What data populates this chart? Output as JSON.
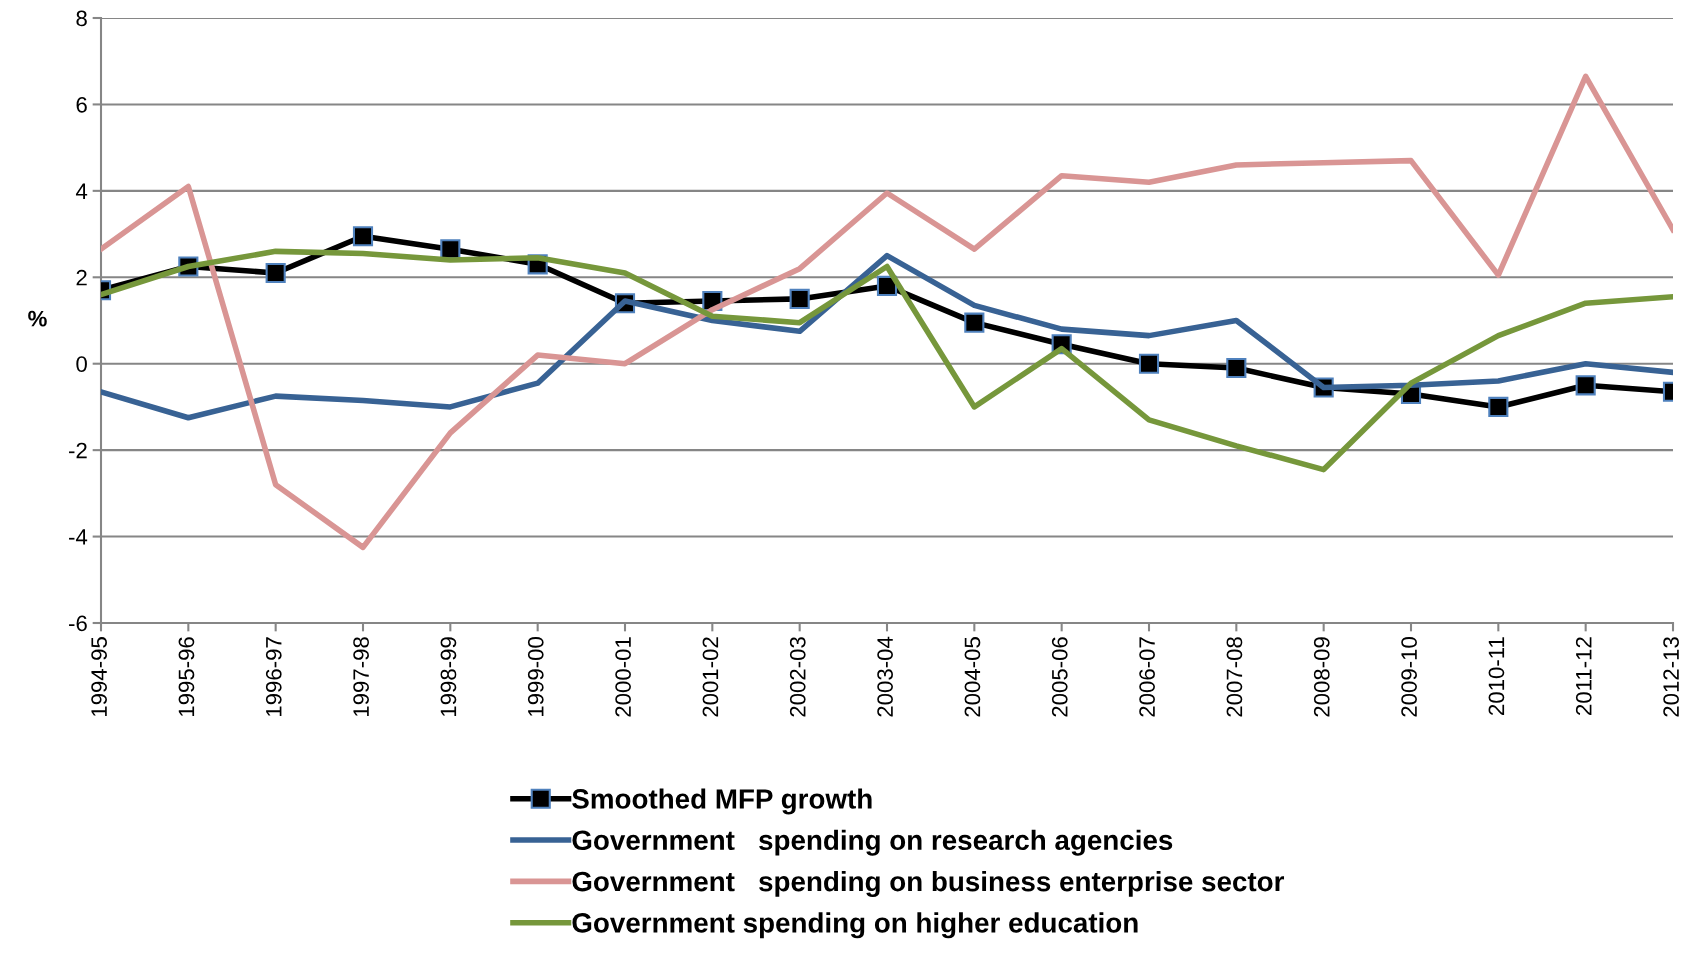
{
  "chart_data": {
    "type": "line",
    "ylabel": "%",
    "categories": [
      "1994-95",
      "1995-96",
      "1996-97",
      "1997-98",
      "1998-99",
      "1999-00",
      "2000-01",
      "2001-02",
      "2002-03",
      "2003-04",
      "2004-05",
      "2005-06",
      "2006-07",
      "2007-08",
      "2008-09",
      "2009-10",
      "2010-11",
      "2011-12",
      "2012-13"
    ],
    "series": [
      {
        "name": "Smoothed MFP growth",
        "color": "#000000",
        "marker": "square",
        "values": [
          1.7,
          2.25,
          2.1,
          2.95,
          2.65,
          2.3,
          1.4,
          1.45,
          1.5,
          1.8,
          0.95,
          0.45,
          0.0,
          -0.1,
          -0.55,
          -0.7,
          -1.0,
          -0.5,
          -0.65
        ]
      },
      {
        "name": "Government   spending on research agencies",
        "color": "#386294",
        "values": [
          -0.65,
          -1.25,
          -0.75,
          -0.85,
          -1.0,
          -0.45,
          1.45,
          1.0,
          0.75,
          2.5,
          1.35,
          0.8,
          0.65,
          1.0,
          -0.55,
          -0.5,
          -0.4,
          0.0,
          -0.2
        ]
      },
      {
        "name": "Government   spending on business enterprise sector",
        "color": "#d99594",
        "values": [
          2.65,
          4.1,
          -2.8,
          -4.25,
          -1.6,
          0.2,
          0.0,
          1.25,
          2.2,
          3.95,
          2.65,
          4.35,
          4.2,
          4.6,
          4.65,
          4.7,
          2.05,
          6.65,
          3.1
        ]
      },
      {
        "name": "Government spending on higher education",
        "color": "#76973b",
        "values": [
          1.6,
          2.25,
          2.6,
          2.55,
          2.4,
          2.45,
          2.1,
          1.1,
          0.95,
          2.25,
          -1.0,
          0.35,
          -1.3,
          -1.9,
          -2.45,
          -0.45,
          0.65,
          1.4,
          1.55
        ]
      }
    ],
    "ylim": [
      -6,
      8
    ],
    "yticks": [
      -6,
      -4,
      -2,
      0,
      2,
      4,
      6,
      8
    ],
    "grid": "y",
    "legend": "bottom",
    "marker": "none",
    "line_style": "solid"
  }
}
